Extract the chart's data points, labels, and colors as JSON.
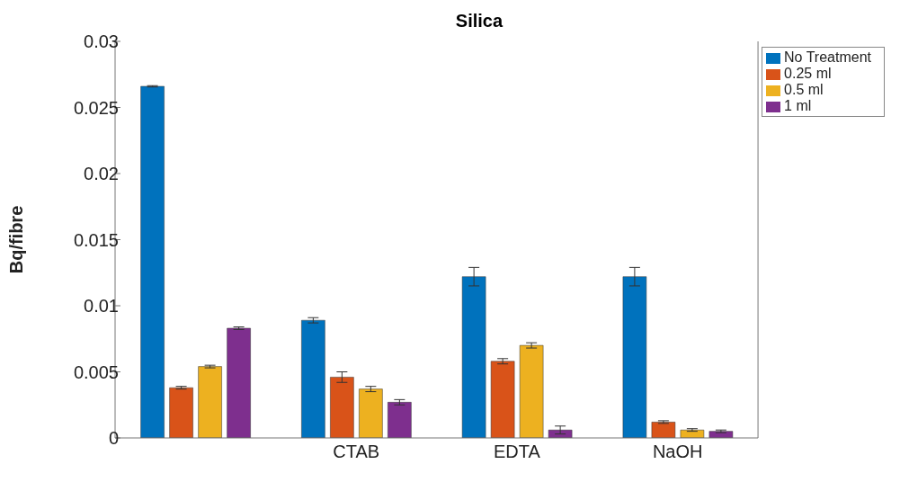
{
  "chart_data": {
    "type": "bar",
    "title": "Silica",
    "ylabel": "Bq/fibre",
    "categories": [
      null,
      "CTAB",
      "EDTA",
      "NaOH"
    ],
    "series": [
      {
        "name": "No Treatment",
        "color": "#0072bd",
        "values": [
          0.0266,
          0.0089,
          0.0122,
          0.0122
        ],
        "errors": [
          5e-05,
          0.0002,
          0.0007,
          0.0007
        ]
      },
      {
        "name": "0.25 ml",
        "color": "#d95319",
        "values": [
          0.0038,
          0.0046,
          0.0058,
          0.0012
        ],
        "errors": [
          0.0001,
          0.0004,
          0.0002,
          0.0001
        ]
      },
      {
        "name": "0.5 ml",
        "color": "#edb120",
        "values": [
          0.0054,
          0.0037,
          0.007,
          0.0006
        ],
        "errors": [
          0.0001,
          0.0002,
          0.0002,
          0.0001
        ]
      },
      {
        "name": "1 ml",
        "color": "#7e2f8e",
        "values": [
          0.0083,
          0.0027,
          0.0006,
          0.0005
        ],
        "errors": [
          0.0001,
          0.0002,
          0.0003,
          0.0001
        ]
      }
    ],
    "ylim": [
      0,
      0.03
    ],
    "yticks": [
      0,
      0.005,
      0.01,
      0.015,
      0.02,
      0.025,
      0.03
    ],
    "grid": false,
    "legend": "top right"
  }
}
